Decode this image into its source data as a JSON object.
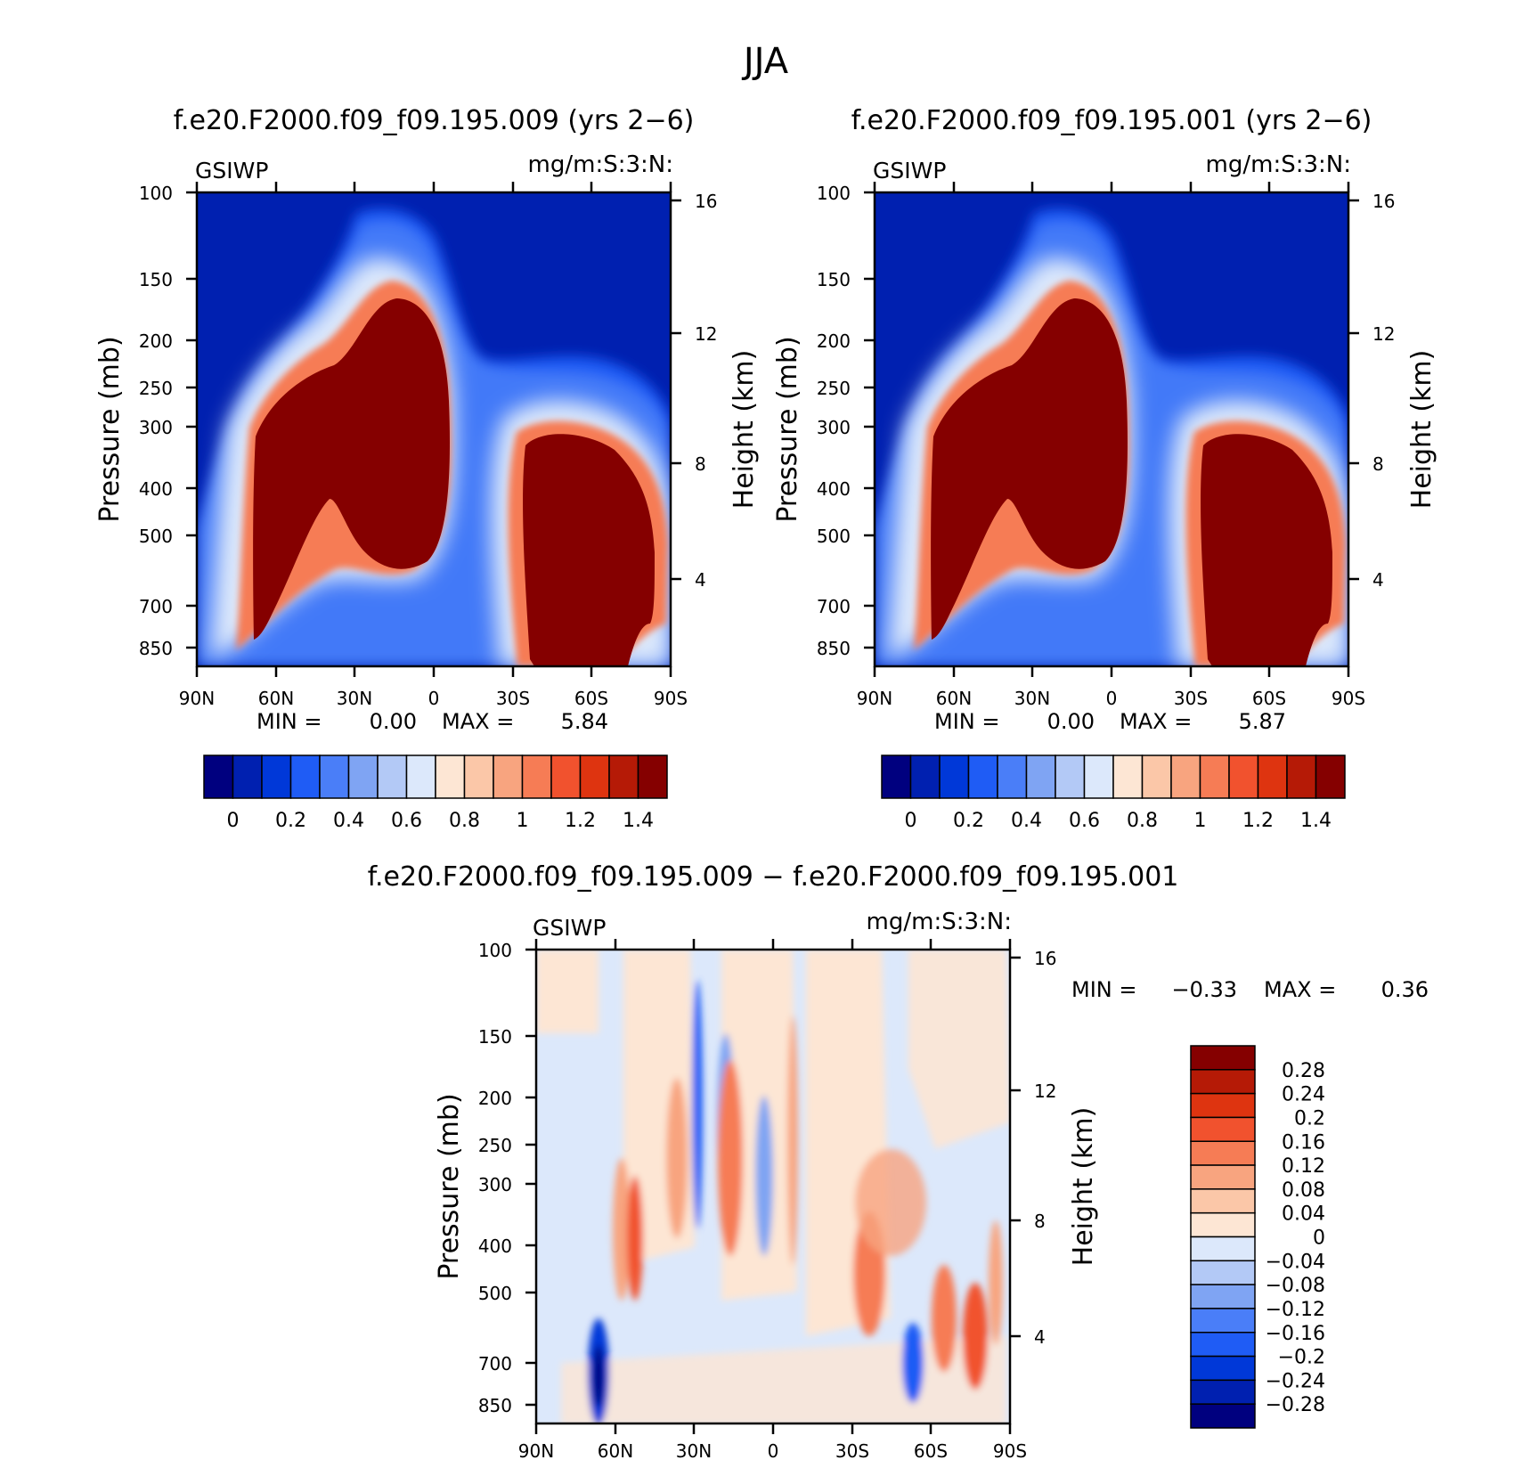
{
  "page_title": "JJA",
  "colorbar_levels": [
    "0",
    "0.2",
    "0.4",
    "0.6",
    "0.8",
    "1",
    "1.2",
    "1.4"
  ],
  "diff_colorbar_levels": [
    "0.28",
    "0.24",
    "0.2",
    "0.16",
    "0.12",
    "0.08",
    "0.04",
    "0",
    "−0.04",
    "−0.08",
    "−0.12",
    "−0.16",
    "−0.2",
    "−0.24",
    "−0.28"
  ],
  "colors": {
    "abs_scale": [
      "#00007f",
      "#0020b0",
      "#0038d8",
      "#1f5cf5",
      "#4a7ef8",
      "#7fa4f3",
      "#b3c9f6",
      "#dce8fb",
      "#fde6d4",
      "#fbc7a8",
      "#f8a47f",
      "#f67c55",
      "#f1522e",
      "#de3410",
      "#b51a06",
      "#850000"
    ],
    "diff_scale": [
      "#850000",
      "#b51a06",
      "#de3410",
      "#f1522e",
      "#f67c55",
      "#f8a47f",
      "#fbc7a8",
      "#fde6d4",
      "#dce8fb",
      "#b3c9f6",
      "#7fa4f3",
      "#4a7ef8",
      "#1f5cf5",
      "#0038d8",
      "#0020b0",
      "#00007f"
    ]
  },
  "chart_data": [
    {
      "type": "heatmap",
      "title": "f.e20.F2000.f09_f09.195.009 (yrs 2−6)",
      "left_label": "GSIWP",
      "right_label": "mg/m:S:3:N:",
      "ylabel": "Pressure (mb)",
      "y2label": "Height (km)",
      "x_ticks": [
        "90N",
        "60N",
        "30N",
        "0",
        "30S",
        "60S",
        "90S"
      ],
      "y_ticks": [
        "100",
        "150",
        "200",
        "250",
        "300",
        "400",
        "500",
        "700",
        "850"
      ],
      "y2_ticks": [
        "16",
        "12",
        "8",
        "4"
      ],
      "min_label": "MIN =",
      "min": "0.00",
      "max_label": "MAX =",
      "max": "5.84",
      "ylim": [
        100,
        1000
      ],
      "scale": "log-pressure"
    },
    {
      "type": "heatmap",
      "title": "f.e20.F2000.f09_f09.195.001 (yrs 2−6)",
      "left_label": "GSIWP",
      "right_label": "mg/m:S:3:N:",
      "ylabel": "Pressure (mb)",
      "y2label": "Height (km)",
      "x_ticks": [
        "90N",
        "60N",
        "30N",
        "0",
        "30S",
        "60S",
        "90S"
      ],
      "y_ticks": [
        "100",
        "150",
        "200",
        "250",
        "300",
        "400",
        "500",
        "700",
        "850"
      ],
      "y2_ticks": [
        "16",
        "12",
        "8",
        "4"
      ],
      "min_label": "MIN =",
      "min": "0.00",
      "max_label": "MAX =",
      "max": "5.87",
      "ylim": [
        100,
        1000
      ],
      "scale": "log-pressure"
    },
    {
      "type": "heatmap",
      "title": "f.e20.F2000.f09_f09.195.009 − f.e20.F2000.f09_f09.195.001",
      "left_label": "GSIWP",
      "right_label": "mg/m:S:3:N:",
      "ylabel": "Pressure (mb)",
      "y2label": "Height (km)",
      "x_ticks": [
        "90N",
        "60N",
        "30N",
        "0",
        "30S",
        "60S",
        "90S"
      ],
      "y_ticks": [
        "100",
        "150",
        "200",
        "250",
        "300",
        "400",
        "500",
        "700",
        "850"
      ],
      "y2_ticks": [
        "16",
        "12",
        "8",
        "4"
      ],
      "min_label": "MIN =",
      "min": "−0.33",
      "max_label": "MAX =",
      "max": "0.36",
      "ylim": [
        100,
        1000
      ],
      "scale": "log-pressure"
    }
  ]
}
